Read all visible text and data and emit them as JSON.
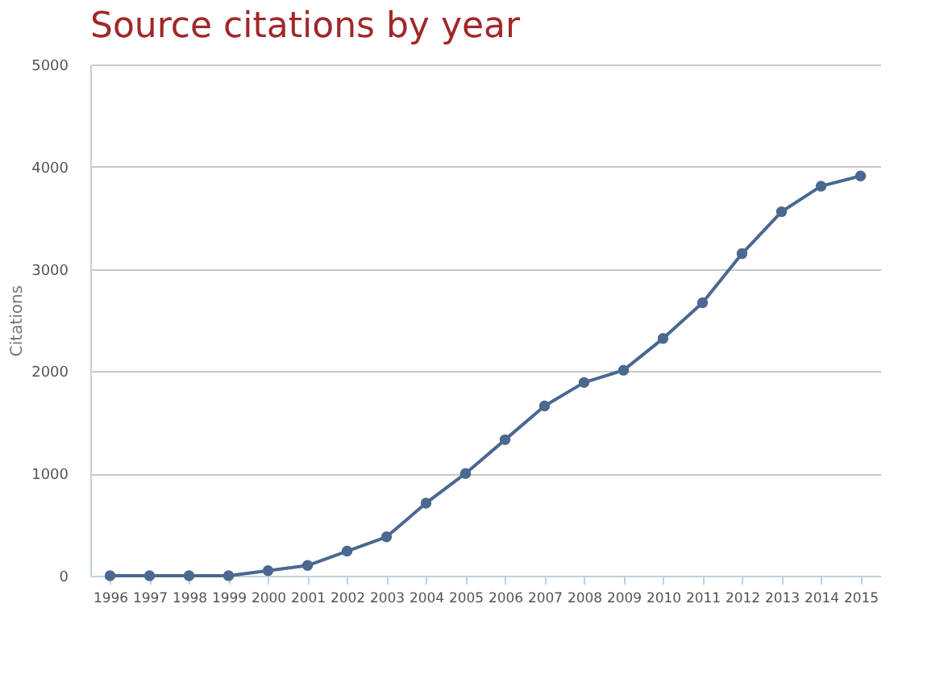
{
  "chart_data": {
    "type": "line",
    "title": "Source citations by year",
    "ylabel": "Citations",
    "categories": [
      "1996",
      "1997",
      "1998",
      "1999",
      "2000",
      "2001",
      "2002",
      "2003",
      "2004",
      "2005",
      "2006",
      "2007",
      "2008",
      "2009",
      "2010",
      "2011",
      "2012",
      "2013",
      "2014",
      "2015"
    ],
    "series": [
      {
        "color": "#4a6890",
        "values": [
          0,
          0,
          0,
          0,
          50,
          100,
          240,
          380,
          710,
          1000,
          1330,
          1660,
          1890,
          2010,
          2320,
          2670,
          3150,
          3560,
          3810,
          3910
        ]
      }
    ],
    "ylim": [
      0,
      5000
    ],
    "yticks": [
      0,
      1000,
      2000,
      3000,
      4000,
      5000
    ],
    "grid": "y",
    "marker": "circle",
    "line_style": "solid"
  }
}
